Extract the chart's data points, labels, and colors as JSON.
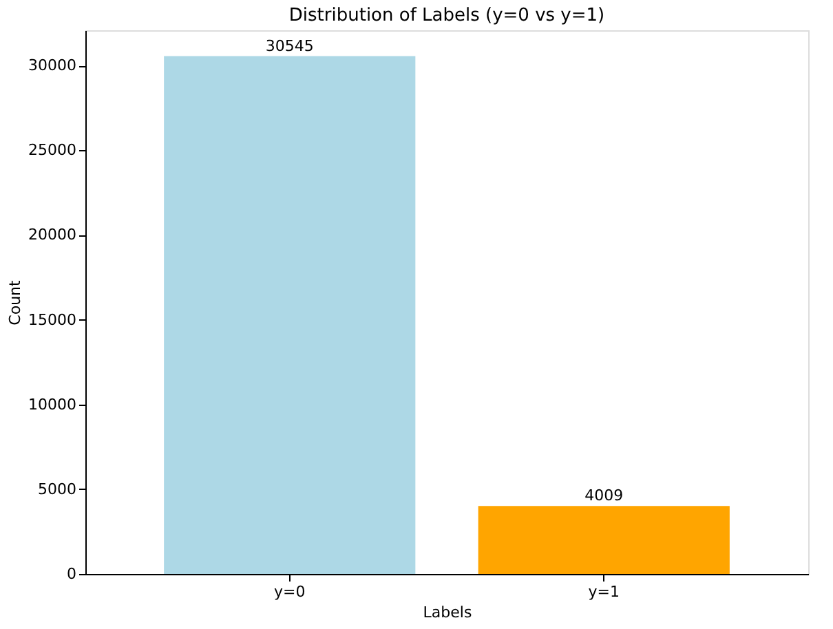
{
  "chart_data": {
    "type": "bar",
    "title": "Distribution of Labels (y=0 vs y=1)",
    "xlabel": "Labels",
    "ylabel": "Count",
    "categories": [
      "y=0",
      "y=1"
    ],
    "values": [
      30545,
      4009
    ],
    "colors": [
      "#add8e6",
      "#ffa500"
    ],
    "ylim": [
      0,
      32072
    ],
    "yticks": [
      0,
      5000,
      10000,
      15000,
      20000,
      25000,
      30000
    ],
    "grid": false,
    "data_labels": true
  }
}
